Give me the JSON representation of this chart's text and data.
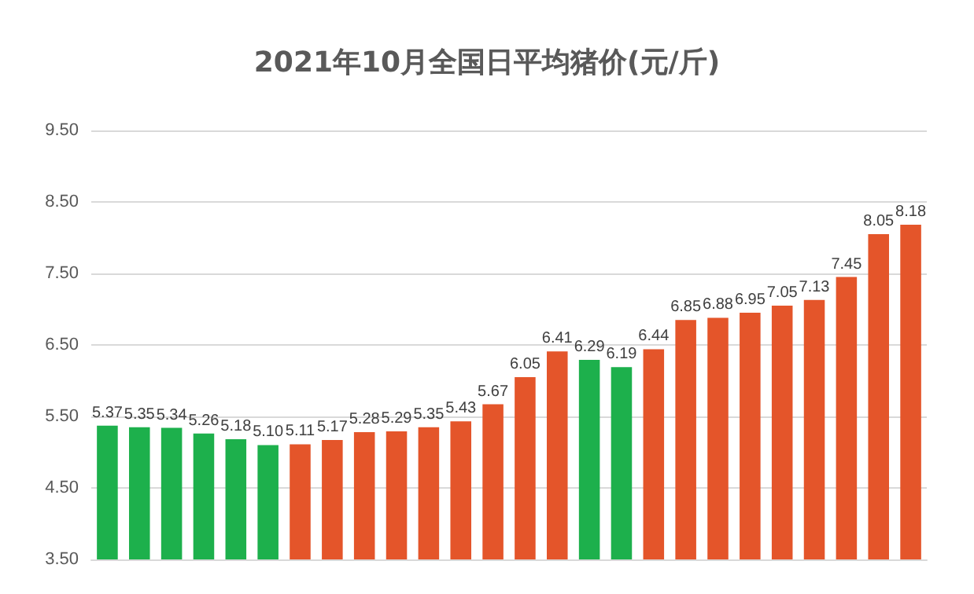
{
  "chart_data": {
    "type": "bar",
    "title": "2021年10月全国日平均猪价(元/斤)",
    "categories": [
      null,
      null,
      null,
      null,
      null,
      null,
      null,
      null,
      null,
      null,
      null,
      null,
      null,
      null,
      null,
      null,
      null,
      null,
      null,
      null,
      null,
      null,
      null,
      null,
      null,
      null
    ],
    "values": [
      5.37,
      5.35,
      5.34,
      5.26,
      5.18,
      5.1,
      5.11,
      5.17,
      5.28,
      5.29,
      5.35,
      5.43,
      5.67,
      6.05,
      6.41,
      6.29,
      6.19,
      6.44,
      6.85,
      6.88,
      6.95,
      7.05,
      7.13,
      7.45,
      8.05,
      8.18
    ],
    "colors": [
      "#1db04c",
      "#1db04c",
      "#1db04c",
      "#1db04c",
      "#1db04c",
      "#1db04c",
      "#e4552a",
      "#e4552a",
      "#e4552a",
      "#e4552a",
      "#e4552a",
      "#e4552a",
      "#e4552a",
      "#e4552a",
      "#e4552a",
      "#1db04c",
      "#1db04c",
      "#e4552a",
      "#e4552a",
      "#e4552a",
      "#e4552a",
      "#e4552a",
      "#e4552a",
      "#e4552a",
      "#e4552a",
      "#e4552a"
    ],
    "ylim": [
      3.5,
      9.5
    ],
    "yticks": [
      {
        "value": 3.5,
        "label": "3.50"
      },
      {
        "value": 4.5,
        "label": "4.50"
      },
      {
        "value": 5.5,
        "label": "5.50"
      },
      {
        "value": 6.5,
        "label": "6.50"
      },
      {
        "value": 7.5,
        "label": "7.50"
      },
      {
        "value": 8.5,
        "label": "8.50"
      },
      {
        "value": 9.5,
        "label": "9.50"
      }
    ],
    "value_labels": [
      "5.37",
      "5.35",
      "5.34",
      "5.26",
      "5.18",
      "5.10",
      "5.11",
      "5.17",
      "5.28",
      "5.29",
      "5.35",
      "5.43",
      "5.67",
      "6.05",
      "6.41",
      "6.29",
      "6.19",
      "6.44",
      "6.85",
      "6.88",
      "6.95",
      "7.05",
      "7.13",
      "7.45",
      "8.05",
      "8.18"
    ],
    "grid": "y"
  }
}
